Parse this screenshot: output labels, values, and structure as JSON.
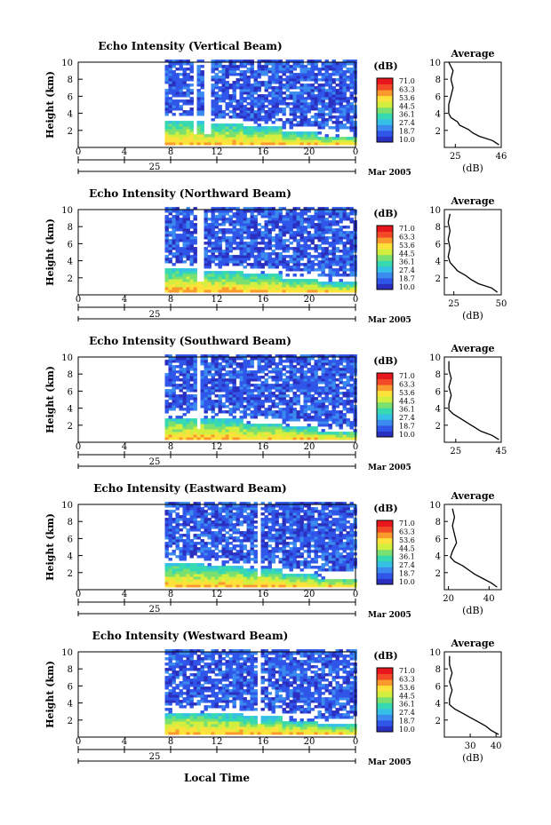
{
  "figure": {
    "xlabel": "Local Time",
    "date_label": "Mar 2005",
    "day_label": "25"
  },
  "colorbar": {
    "unit": "(dB)",
    "ticks": [
      "71.0",
      "63.3",
      "53.6",
      "44.5",
      "36.1",
      "27.4",
      "18.7",
      "10.0"
    ],
    "colors": [
      "#2b2fbf",
      "#2f56e8",
      "#3a8af0",
      "#35c0e6",
      "#36d9b0",
      "#7ae070",
      "#d2ee3e",
      "#fde23c",
      "#fb9a2c",
      "#f24a26",
      "#e8171d"
    ]
  },
  "chart_data": [
    {
      "type": "heatmap",
      "title": "Echo Intensity (Vertical Beam)",
      "xlabel": "",
      "ylabel": "Height (km)",
      "x_ticks": [
        "0",
        "4",
        "8",
        "12",
        "16",
        "20",
        "0"
      ],
      "y_ticks": [
        "2",
        "4",
        "6",
        "8",
        "10"
      ],
      "xlim": [
        0,
        24
      ],
      "ylim": [
        0,
        10
      ],
      "data_start_hour": 7.5,
      "boundary_layer_top_km": [
        2.9,
        2.6,
        2.2,
        1.6,
        1.2
      ],
      "gaps_hours": [
        10.0,
        11.0
      ],
      "color_scale_db": [
        10.0,
        71.0
      ],
      "profile": {
        "title": "Average",
        "xlabel": "(dB)",
        "x_ticks": [
          "25",
          "46"
        ],
        "xlim": [
          20,
          46
        ],
        "height_km": [
          0.3,
          0.8,
          1.3,
          1.7,
          2.1,
          2.6,
          3.0,
          3.5,
          4.0,
          5.0,
          6.0,
          7.0,
          8.0,
          9.0,
          10.0
        ],
        "values_db": [
          45,
          42,
          36,
          33,
          31,
          27,
          26,
          23,
          22,
          22,
          23,
          24,
          23,
          24,
          22
        ]
      }
    },
    {
      "type": "heatmap",
      "title": "Echo Intensity (Northward Beam)",
      "xlabel": "",
      "ylabel": "Height (km)",
      "x_ticks": [
        "0",
        "4",
        "8",
        "12",
        "16",
        "20",
        "0"
      ],
      "y_ticks": [
        "2",
        "4",
        "6",
        "8",
        "10"
      ],
      "xlim": [
        0,
        24
      ],
      "ylim": [
        0,
        10
      ],
      "data_start_hour": 7.5,
      "boundary_layer_top_km": [
        3.0,
        2.7,
        2.3,
        1.8,
        1.3
      ],
      "gaps_hours": [
        10.5
      ],
      "color_scale_db": [
        10.0,
        71.0
      ],
      "profile": {
        "title": "Average",
        "xlabel": "(dB)",
        "x_ticks": [
          "25",
          "50"
        ],
        "xlim": [
          20,
          50
        ],
        "height_km": [
          0.3,
          0.8,
          1.3,
          1.8,
          2.3,
          2.8,
          3.3,
          3.8,
          4.5,
          5.5,
          6.5,
          7.5,
          8.5,
          9.5
        ],
        "values_db": [
          48,
          45,
          38,
          34,
          31,
          27,
          25,
          23,
          22,
          23,
          22,
          23,
          22,
          23
        ]
      }
    },
    {
      "type": "heatmap",
      "title": "Echo Intensity (Southward Beam)",
      "xlabel": "",
      "ylabel": "Height (km)",
      "x_ticks": [
        "0",
        "4",
        "8",
        "12",
        "16",
        "20",
        "0"
      ],
      "y_ticks": [
        "2",
        "4",
        "6",
        "8",
        "10"
      ],
      "xlim": [
        0,
        24
      ],
      "ylim": [
        0,
        10
      ],
      "data_start_hour": 7.5,
      "boundary_layer_top_km": [
        2.8,
        2.5,
        2.1,
        1.6,
        1.1
      ],
      "gaps_hours": [
        10.3
      ],
      "color_scale_db": [
        10.0,
        71.0
      ],
      "profile": {
        "title": "Average",
        "xlabel": "",
        "x_ticks": [
          "25",
          "45"
        ],
        "xlim": [
          20,
          45
        ],
        "height_km": [
          0.3,
          0.8,
          1.3,
          1.8,
          2.3,
          2.8,
          3.3,
          3.8,
          4.5,
          5.5,
          6.5,
          7.5,
          8.5,
          9.5
        ],
        "values_db": [
          44,
          41,
          36,
          33,
          30,
          27,
          24,
          22,
          22,
          23,
          22,
          23,
          22,
          22
        ]
      }
    },
    {
      "type": "heatmap",
      "title": "Echo Intensity (Eastward Beam)",
      "xlabel": "",
      "ylabel": "Height (km)",
      "x_ticks": [
        "0",
        "4",
        "8",
        "12",
        "16",
        "20",
        "0"
      ],
      "y_ticks": [
        "2",
        "4",
        "6",
        "8",
        "10"
      ],
      "xlim": [
        0,
        24
      ],
      "ylim": [
        0,
        10
      ],
      "data_start_hour": 7.5,
      "boundary_layer_top_km": [
        2.9,
        2.6,
        2.3,
        1.7,
        1.2
      ],
      "gaps_hours": [
        15.5
      ],
      "color_scale_db": [
        10.0,
        71.0
      ],
      "profile": {
        "title": "Average",
        "xlabel": "(dB)",
        "x_ticks": [
          "20",
          "40"
        ],
        "xlim": [
          18,
          46
        ],
        "height_km": [
          0.3,
          0.8,
          1.3,
          1.8,
          2.3,
          2.8,
          3.3,
          3.8,
          4.5,
          5.5,
          6.5,
          7.5,
          8.5,
          9.5
        ],
        "values_db": [
          44,
          41,
          37,
          33,
          30,
          27,
          23,
          21,
          22,
          24,
          23,
          22,
          23,
          22
        ]
      }
    },
    {
      "type": "heatmap",
      "title": "Echo Intensity (Westward Beam)",
      "xlabel": "Local Time",
      "ylabel": "Height (km)",
      "x_ticks": [
        "0",
        "4",
        "8",
        "12",
        "16",
        "20",
        "0"
      ],
      "y_ticks": [
        "2",
        "4",
        "6",
        "8",
        "10"
      ],
      "xlim": [
        0,
        24
      ],
      "ylim": [
        0,
        10
      ],
      "data_start_hour": 7.5,
      "boundary_layer_top_km": [
        2.8,
        2.5,
        2.2,
        1.8,
        1.3
      ],
      "gaps_hours": [
        15.5
      ],
      "color_scale_db": [
        10.0,
        71.0
      ],
      "profile": {
        "title": "Average",
        "xlabel": "(dB)",
        "x_ticks": [
          "30",
          "40"
        ],
        "xlim": [
          20,
          42
        ],
        "height_km": [
          0.3,
          0.8,
          1.3,
          1.8,
          2.3,
          2.8,
          3.3,
          3.8,
          4.5,
          5.5,
          6.5,
          7.5,
          8.5,
          9.5
        ],
        "values_db": [
          41,
          38,
          36,
          33,
          30,
          27,
          24,
          22,
          22,
          23,
          22,
          23,
          22,
          22
        ]
      }
    }
  ]
}
